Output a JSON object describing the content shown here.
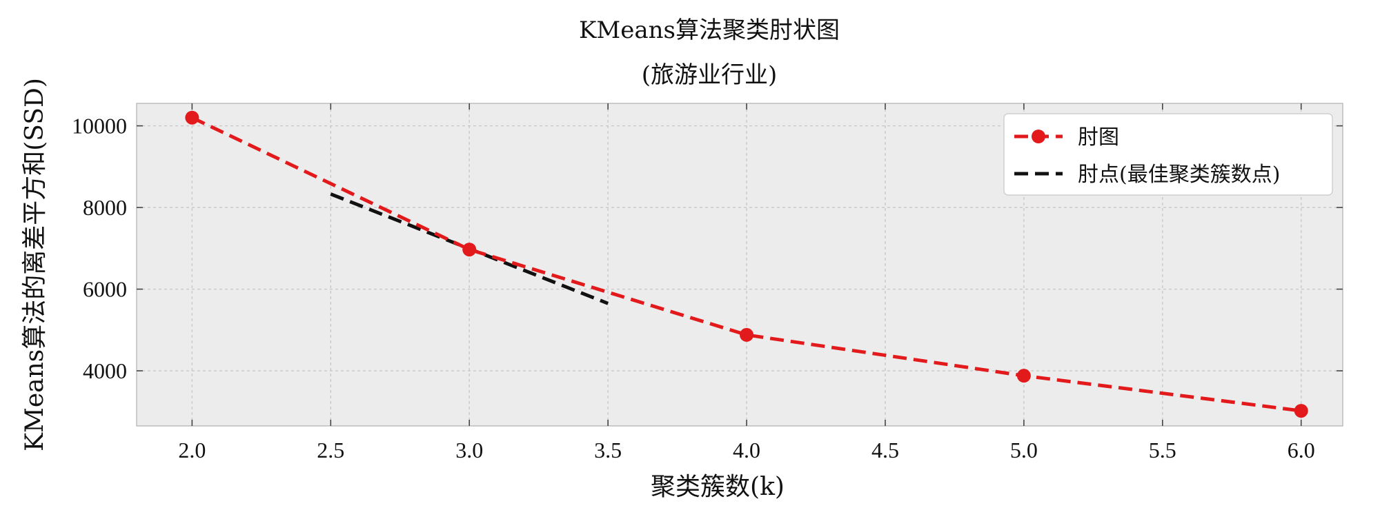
{
  "chart_data": {
    "type": "line",
    "title": "KMeans算法聚类肘状图",
    "subtitle": "(旅游业行业)",
    "xlabel": "聚类簇数(k)",
    "ylabel": "KMeans算法的离差平方和(SSD)",
    "xlim": [
      1.8,
      6.15
    ],
    "ylim": [
      2650,
      10550
    ],
    "x_ticks": [
      "2.0",
      "2.5",
      "3.0",
      "3.5",
      "4.0",
      "4.5",
      "5.0",
      "5.5",
      "6.0"
    ],
    "y_ticks": [
      "4000",
      "6000",
      "8000",
      "10000"
    ],
    "grid": true,
    "legend_position": "top-right",
    "series": [
      {
        "name": "肘图",
        "style": "dashed-with-markers",
        "color": "#e31a1c",
        "x": [
          2,
          3,
          4,
          5,
          6
        ],
        "y": [
          10200,
          6970,
          4880,
          3880,
          3020
        ]
      },
      {
        "name": "肘点(最佳聚类簇数点)",
        "style": "dashed",
        "color": "#111111",
        "x": [
          2.5,
          3.5
        ],
        "y": [
          8330,
          5650
        ]
      }
    ]
  }
}
